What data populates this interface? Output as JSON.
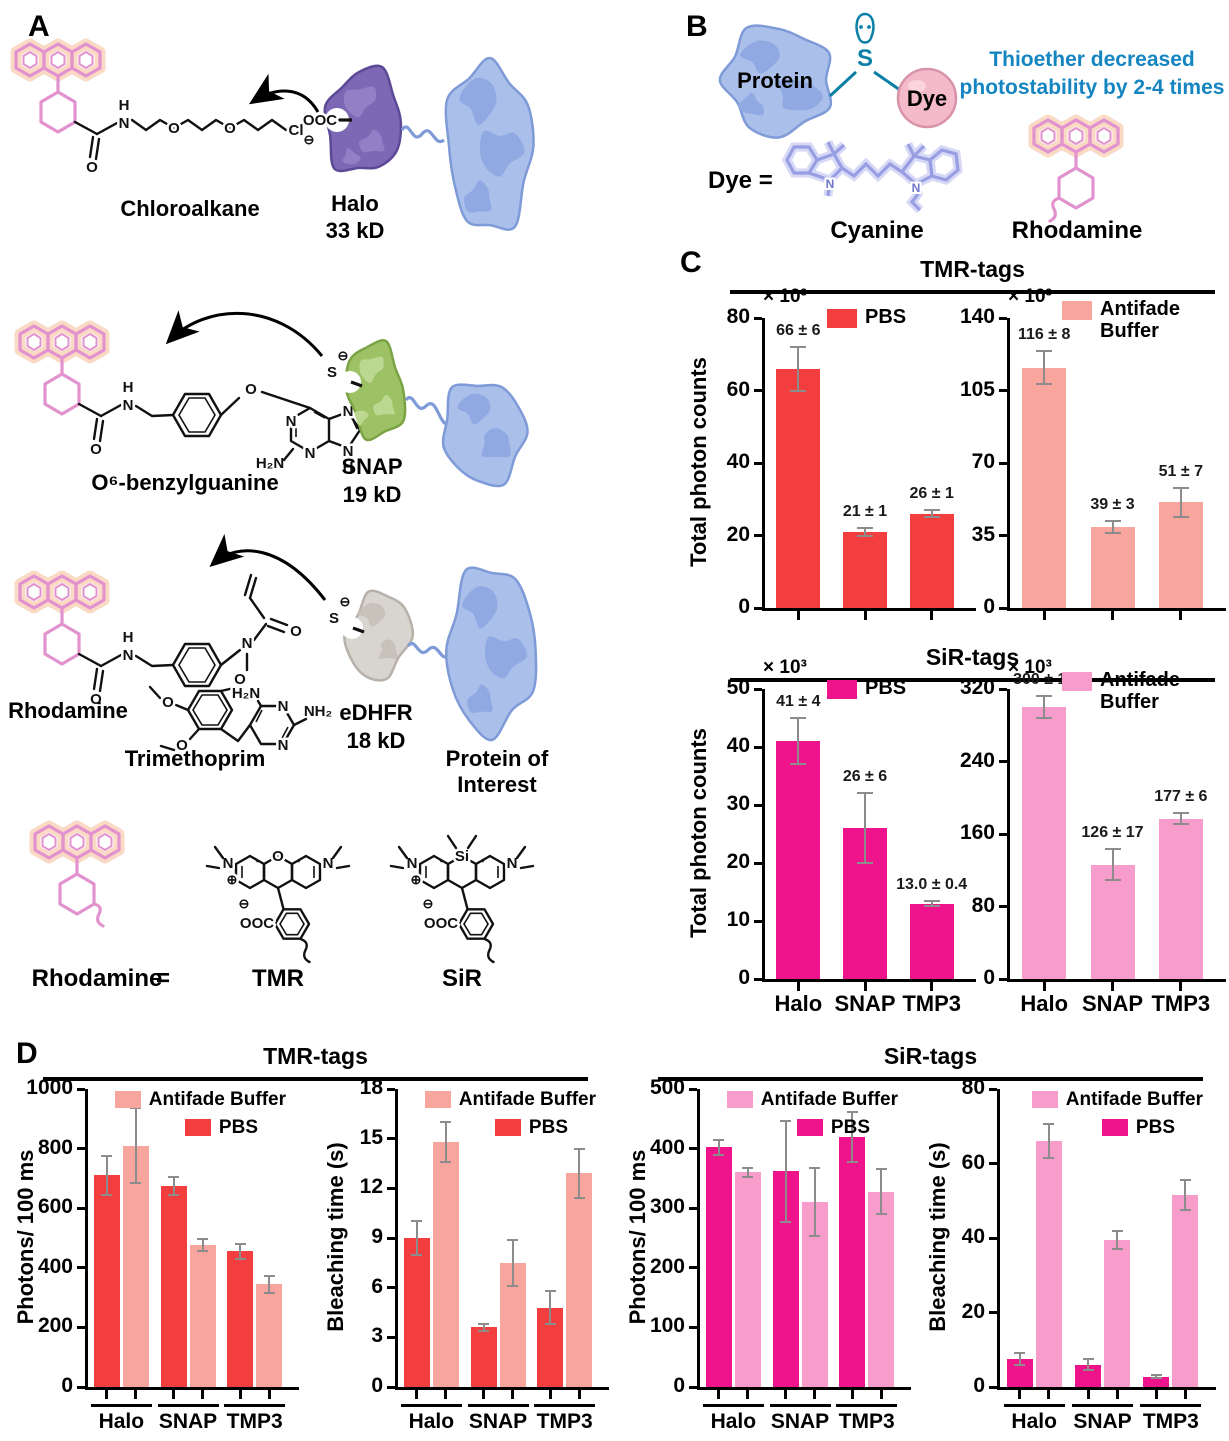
{
  "colors": {
    "pbs_red": "#F23E3E",
    "antifade_salmon": "#F8A59E",
    "pbs_magenta": "#F0148C",
    "antifade_pink": "#F79CCB",
    "error_bar": "#8C8C8C",
    "axis": "#000000",
    "note_blue": "#1585C2",
    "teal": "#0B7FA6",
    "rhodamine_pink": "#E292CE",
    "cyanine_periwinkle": "#989EE2"
  },
  "panels": {
    "a": {
      "label": "A",
      "ligands": {
        "chloroalkane": "Chloroalkane",
        "benzylguanine": "O⁶-benzylguanine",
        "trimethoprim": "Trimethoprim"
      },
      "tags": {
        "halo": "Halo",
        "halo_size": "33 kD",
        "snap": "SNAP",
        "snap_size": "19 kD",
        "edhfr": "eDHFR",
        "edhfr_size": "18 kD"
      },
      "rhodamine": "Rhodamine",
      "protein_of_interest_line1": "Protein of",
      "protein_of_interest_line2": "Interest",
      "equivalence": {
        "rhodamine": "Rhodamine",
        "equals": "=",
        "tmr": "TMR",
        "sir": "SiR"
      }
    },
    "b": {
      "label": "B",
      "protein": "Protein",
      "dye": "Dye",
      "sulfur": "S",
      "note_line1": "Thioether decreased",
      "note_line2": "photostability by 2-4 times",
      "dye_equals": "Dye =",
      "cyanine": "Cyanine",
      "rhodamine": "Rhodamine"
    },
    "c": {
      "label": "C",
      "tmr_title": "TMR-tags",
      "sir_title": "SiR-tags"
    },
    "d": {
      "label": "D",
      "tmr_title": "TMR-tags",
      "sir_title": "SiR-tags"
    }
  },
  "atoms": {
    "o": "O",
    "n": "N",
    "h": "H",
    "cl": "Cl",
    "s": "S",
    "si": "Si",
    "ooc": "OOC",
    "minus": "⊖",
    "plus": "⊕",
    "h2n": "H₂N",
    "nh2": "NH₂"
  },
  "chart_data": [
    {
      "id": "c_tmr_pbs_total_photons",
      "type": "bar",
      "panel": "C",
      "group_title": "TMR-tags",
      "ylabel": "Total photon counts",
      "scale_label": "× 10³",
      "legend": [
        {
          "label": "PBS",
          "color": "pbs_red"
        }
      ],
      "categories": [
        "Halo",
        "SNAP",
        "TMP3"
      ],
      "values": [
        66,
        21,
        26
      ],
      "errors": [
        6,
        1,
        1
      ],
      "bar_labels": [
        "66 ± 6",
        "21 ± 1",
        "26 ± 1"
      ],
      "color": "pbs_red",
      "ylim": [
        0,
        80
      ],
      "yticks": [
        0,
        20,
        40,
        60,
        80
      ],
      "show_xlabels": false
    },
    {
      "id": "c_tmr_antifade_total_photons",
      "type": "bar",
      "panel": "C",
      "group_title": "TMR-tags",
      "ylabel": null,
      "scale_label": "× 10³",
      "legend": [
        {
          "label": "Antifade Buffer",
          "lines": [
            "Antifade",
            "Buffer"
          ],
          "color": "antifade_salmon"
        }
      ],
      "categories": [
        "Halo",
        "SNAP",
        "TMP3"
      ],
      "values": [
        116,
        39,
        51
      ],
      "errors": [
        8,
        3,
        7
      ],
      "bar_labels": [
        "116 ± 8",
        "39 ± 3",
        "51 ± 7"
      ],
      "color": "antifade_salmon",
      "ylim": [
        0,
        140
      ],
      "yticks": [
        0,
        35,
        70,
        105,
        140
      ],
      "show_xlabels": false
    },
    {
      "id": "c_sir_pbs_total_photons",
      "type": "bar",
      "panel": "C",
      "group_title": "SiR-tags",
      "ylabel": "Total photon counts",
      "scale_label": "× 10³",
      "legend": [
        {
          "label": "PBS",
          "color": "pbs_magenta"
        }
      ],
      "categories": [
        "Halo",
        "SNAP",
        "TMP3"
      ],
      "values": [
        41,
        26,
        13
      ],
      "errors": [
        4,
        6,
        0.4
      ],
      "bar_labels": [
        "41 ± 4",
        "26 ± 6",
        "13.0 ± 0.4"
      ],
      "color": "pbs_magenta",
      "ylim": [
        0,
        50
      ],
      "yticks": [
        0,
        10,
        20,
        30,
        40,
        50
      ],
      "show_xlabels": true
    },
    {
      "id": "c_sir_antifade_total_photons",
      "type": "bar",
      "panel": "C",
      "group_title": "SiR-tags",
      "ylabel": null,
      "scale_label": "× 10³",
      "legend": [
        {
          "label": "Antifade Buffer",
          "lines": [
            "Antifade",
            "Buffer"
          ],
          "color": "antifade_pink"
        }
      ],
      "categories": [
        "Halo",
        "SNAP",
        "TMP3"
      ],
      "values": [
        300,
        126,
        177
      ],
      "errors": [
        12,
        17,
        6
      ],
      "bar_labels": [
        "300 ± 12",
        "126 ± 17",
        "177 ± 6"
      ],
      "color": "antifade_pink",
      "ylim": [
        0,
        320
      ],
      "yticks": [
        0,
        80,
        160,
        240,
        320
      ],
      "show_xlabels": true
    },
    {
      "id": "d_tmr_photons_per_100ms",
      "type": "bar",
      "panel": "D",
      "group_title": "TMR-tags",
      "ylabel": "Photons/ 100 ms",
      "legend": [
        {
          "label": "Antifade Buffer",
          "color": "antifade_salmon"
        },
        {
          "label": "PBS",
          "color": "pbs_red"
        }
      ],
      "categories": [
        "Halo",
        "SNAP",
        "TMP3"
      ],
      "series": [
        {
          "name": "PBS",
          "color": "pbs_red",
          "values": [
            710,
            675,
            455
          ],
          "errors": [
            65,
            30,
            25
          ]
        },
        {
          "name": "Antifade Buffer",
          "color": "antifade_salmon",
          "values": [
            810,
            475,
            345
          ],
          "errors": [
            125,
            20,
            28
          ]
        }
      ],
      "ylim": [
        0,
        1000
      ],
      "yticks": [
        0,
        200,
        400,
        600,
        800,
        1000
      ],
      "show_xlabels": true,
      "group_underline": true
    },
    {
      "id": "d_tmr_bleaching_time",
      "type": "bar",
      "panel": "D",
      "group_title": "TMR-tags",
      "ylabel": "Bleaching time (s)",
      "legend": [
        {
          "label": "Antifade Buffer",
          "color": "antifade_salmon"
        },
        {
          "label": "PBS",
          "color": "pbs_red"
        }
      ],
      "categories": [
        "Halo",
        "SNAP",
        "TMP3"
      ],
      "series": [
        {
          "name": "PBS",
          "color": "pbs_red",
          "values": [
            9.0,
            3.6,
            4.8
          ],
          "errors": [
            1.0,
            0.2,
            1.0
          ]
        },
        {
          "name": "Antifade Buffer",
          "color": "antifade_salmon",
          "values": [
            14.8,
            7.5,
            12.9
          ],
          "errors": [
            1.2,
            1.4,
            1.5
          ]
        }
      ],
      "ylim": [
        0,
        18
      ],
      "yticks": [
        0,
        3,
        6,
        9,
        12,
        15,
        18
      ],
      "show_xlabels": true,
      "group_underline": true
    },
    {
      "id": "d_sir_photons_per_100ms",
      "type": "bar",
      "panel": "D",
      "group_title": "SiR-tags",
      "ylabel": "Photons/ 100 ms",
      "legend": [
        {
          "label": "Antifade Buffer",
          "color": "antifade_pink"
        },
        {
          "label": "PBS",
          "color": "pbs_magenta"
        }
      ],
      "categories": [
        "Halo",
        "SNAP",
        "TMP3"
      ],
      "series": [
        {
          "name": "PBS",
          "color": "pbs_magenta",
          "values": [
            402,
            362,
            420
          ],
          "errors": [
            12,
            85,
            42
          ]
        },
        {
          "name": "Antifade Buffer",
          "color": "antifade_pink",
          "values": [
            360,
            311,
            328
          ],
          "errors": [
            7,
            57,
            37
          ]
        }
      ],
      "ylim": [
        0,
        500
      ],
      "yticks": [
        0,
        100,
        200,
        300,
        400,
        500
      ],
      "show_xlabels": true,
      "group_underline": true
    },
    {
      "id": "d_sir_bleaching_time",
      "type": "bar",
      "panel": "D",
      "group_title": "SiR-tags",
      "ylabel": "Bleaching time (s)",
      "legend": [
        {
          "label": "Antifade Buffer",
          "color": "antifade_pink"
        },
        {
          "label": "PBS",
          "color": "pbs_magenta"
        }
      ],
      "categories": [
        "Halo",
        "SNAP",
        "TMP3"
      ],
      "series": [
        {
          "name": "PBS",
          "color": "pbs_magenta",
          "values": [
            7.5,
            6.0,
            2.8
          ],
          "errors": [
            1.5,
            1.5,
            0.4
          ]
        },
        {
          "name": "Antifade Buffer",
          "color": "antifade_pink",
          "values": [
            66,
            39.5,
            51.5
          ],
          "errors": [
            4.5,
            2.5,
            4
          ]
        }
      ],
      "ylim": [
        0,
        80
      ],
      "yticks": [
        0,
        20,
        40,
        60,
        80
      ],
      "show_xlabels": true,
      "group_underline": true
    }
  ]
}
